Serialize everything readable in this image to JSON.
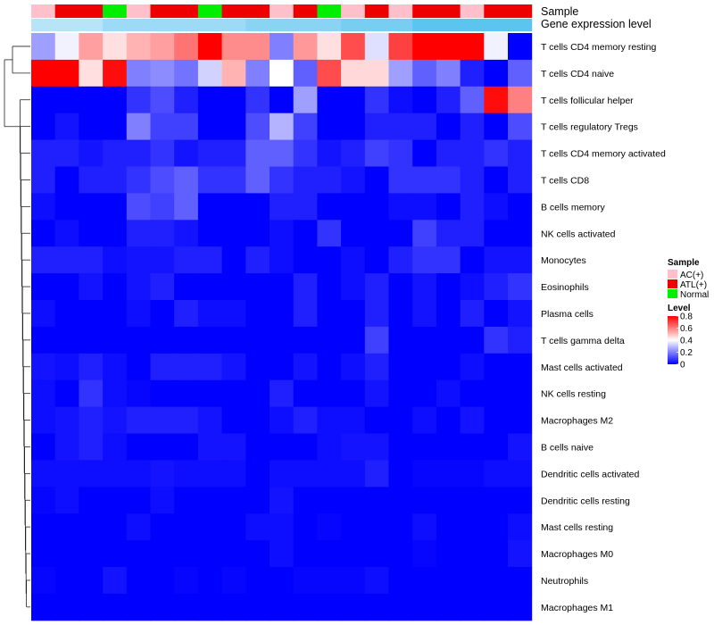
{
  "chart_data": {
    "type": "heatmap",
    "title": "",
    "annotations": {
      "sample_label": "Sample",
      "expression_label": "Gene expression level",
      "samples": [
        "AC(+)",
        "ATL(+)",
        "ATL(+)",
        "Normal",
        "AC(+)",
        "ATL(+)",
        "ATL(+)",
        "Normal",
        "ATL(+)",
        "ATL(+)",
        "AC(+)",
        "ATL(+)",
        "Normal",
        "AC(+)",
        "ATL(+)",
        "AC(+)",
        "ATL(+)",
        "ATL(+)",
        "AC(+)",
        "ATL(+)",
        "ATL(+)"
      ],
      "sample_colors": {
        "AC(+)": "#ffc0cb",
        "ATL(+)": "#ee0000",
        "Normal": "#00ee00"
      },
      "expression_bar": [
        0.05,
        0.05,
        0.05,
        0.08,
        0.08,
        0.08,
        0.08,
        0.08,
        0.08,
        0.1,
        0.1,
        0.1,
        0.1,
        0.12,
        0.12,
        0.12,
        0.15,
        0.15,
        0.15,
        0.15,
        0.15
      ],
      "expression_colors": [
        "#e6f3fb",
        "#5bc5ef"
      ]
    },
    "rows": [
      "T cells CD4 memory resting",
      "T cells CD4 naive",
      "T cells follicular helper",
      "T cells regulatory  Tregs",
      "T cells CD4 memory activated",
      "T cells CD8",
      "B cells memory",
      "NK cells activated",
      "Monocytes",
      "Eosinophils",
      "Plasma cells",
      "T cells gamma delta",
      "Mast cells activated",
      "NK cells resting",
      "Macrophages M2",
      "B cells naive",
      "Dendritic cells activated",
      "Dendritic cells resting",
      "Mast cells resting",
      "Macrophages M0",
      "Neutrophils",
      "Macrophages M1"
    ],
    "values": [
      [
        0.25,
        0.38,
        0.55,
        0.45,
        0.52,
        0.55,
        0.62,
        0.8,
        0.58,
        0.58,
        0.2,
        0.56,
        0.45,
        0.68,
        0.35,
        0.7,
        0.8,
        0.8,
        0.8,
        0.38,
        0.0
      ],
      [
        0.8,
        0.8,
        0.45,
        0.78,
        0.2,
        0.22,
        0.18,
        0.33,
        0.52,
        0.2,
        0.4,
        0.15,
        0.68,
        0.46,
        0.46,
        0.25,
        0.15,
        0.2,
        0.05,
        0.0,
        0.15
      ],
      [
        0.0,
        0.0,
        0.0,
        0.0,
        0.08,
        0.12,
        0.05,
        0.0,
        0.0,
        0.08,
        0.0,
        0.25,
        0.0,
        0.0,
        0.08,
        0.02,
        0.0,
        0.05,
        0.15,
        0.78,
        0.6
      ],
      [
        0.0,
        0.03,
        0.0,
        0.0,
        0.2,
        0.1,
        0.1,
        0.0,
        0.0,
        0.12,
        0.28,
        0.1,
        0.0,
        0.0,
        0.05,
        0.05,
        0.05,
        0.0,
        0.05,
        0.0,
        0.12
      ],
      [
        0.05,
        0.05,
        0.03,
        0.05,
        0.05,
        0.08,
        0.03,
        0.05,
        0.05,
        0.15,
        0.15,
        0.08,
        0.03,
        0.05,
        0.1,
        0.08,
        0.0,
        0.05,
        0.05,
        0.08,
        0.05
      ],
      [
        0.05,
        0.0,
        0.05,
        0.05,
        0.08,
        0.12,
        0.15,
        0.08,
        0.08,
        0.15,
        0.08,
        0.05,
        0.05,
        0.03,
        0.0,
        0.08,
        0.08,
        0.08,
        0.05,
        0.0,
        0.05
      ],
      [
        0.02,
        0.0,
        0.0,
        0.0,
        0.12,
        0.1,
        0.15,
        0.0,
        0.0,
        0.0,
        0.05,
        0.05,
        0.0,
        0.0,
        0.0,
        0.02,
        0.02,
        0.0,
        0.05,
        0.02,
        0.0
      ],
      [
        0.0,
        0.02,
        0.0,
        0.0,
        0.05,
        0.05,
        0.03,
        0.0,
        0.0,
        0.0,
        0.02,
        0.0,
        0.08,
        0.0,
        0.0,
        0.0,
        0.1,
        0.05,
        0.05,
        0.0,
        0.0
      ],
      [
        0.05,
        0.05,
        0.05,
        0.02,
        0.03,
        0.03,
        0.05,
        0.05,
        0.0,
        0.05,
        0.02,
        0.0,
        0.0,
        0.02,
        0.0,
        0.05,
        0.08,
        0.08,
        0.0,
        0.03,
        0.03
      ],
      [
        0.0,
        0.0,
        0.03,
        0.0,
        0.03,
        0.05,
        0.0,
        0.0,
        0.0,
        0.0,
        0.0,
        0.05,
        0.0,
        0.02,
        0.05,
        0.0,
        0.03,
        0.0,
        0.02,
        0.05,
        0.08
      ],
      [
        0.02,
        0.0,
        0.0,
        0.0,
        0.02,
        0.0,
        0.05,
        0.02,
        0.02,
        0.0,
        0.0,
        0.05,
        0.0,
        0.0,
        0.05,
        0.0,
        0.03,
        0.0,
        0.05,
        0.0,
        0.03
      ],
      [
        0.0,
        0.0,
        0.0,
        0.0,
        0.0,
        0.0,
        0.0,
        0.0,
        0.0,
        0.0,
        0.0,
        0.0,
        0.0,
        0.0,
        0.1,
        0.0,
        0.0,
        0.0,
        0.0,
        0.08,
        0.05
      ],
      [
        0.03,
        0.02,
        0.05,
        0.02,
        0.0,
        0.05,
        0.05,
        0.05,
        0.03,
        0.0,
        0.0,
        0.03,
        0.0,
        0.02,
        0.05,
        0.0,
        0.0,
        0.0,
        0.02,
        0.0,
        0.0
      ],
      [
        0.02,
        0.0,
        0.08,
        0.02,
        0.01,
        0.0,
        0.0,
        0.0,
        0.0,
        0.0,
        0.05,
        0.0,
        0.0,
        0.0,
        0.03,
        0.0,
        0.0,
        0.02,
        0.0,
        0.0,
        0.0
      ],
      [
        0.02,
        0.03,
        0.05,
        0.03,
        0.05,
        0.05,
        0.05,
        0.03,
        0.0,
        0.0,
        0.02,
        0.05,
        0.02,
        0.02,
        0.0,
        0.0,
        0.02,
        0.0,
        0.03,
        0.0,
        0.0
      ],
      [
        0.0,
        0.03,
        0.05,
        0.02,
        0.0,
        0.0,
        0.0,
        0.03,
        0.03,
        0.0,
        0.0,
        0.0,
        0.02,
        0.03,
        0.03,
        0.0,
        0.0,
        0.0,
        0.0,
        0.0,
        0.03
      ],
      [
        0.02,
        0.02,
        0.02,
        0.02,
        0.02,
        0.03,
        0.02,
        0.02,
        0.02,
        0.0,
        0.02,
        0.02,
        0.02,
        0.02,
        0.05,
        0.0,
        0.01,
        0.01,
        0.01,
        0.02,
        0.02
      ],
      [
        0.01,
        0.02,
        0.0,
        0.0,
        0.0,
        0.02,
        0.0,
        0.0,
        0.0,
        0.0,
        0.03,
        0.0,
        0.0,
        0.0,
        0.0,
        0.0,
        0.0,
        0.0,
        0.0,
        0.0,
        0.0
      ],
      [
        0.0,
        0.0,
        0.0,
        0.0,
        0.02,
        0.0,
        0.0,
        0.0,
        0.0,
        0.02,
        0.02,
        0.0,
        0.01,
        0.0,
        0.0,
        0.0,
        0.02,
        0.0,
        0.0,
        0.0,
        0.02
      ],
      [
        0.0,
        0.0,
        0.0,
        0.0,
        0.0,
        0.0,
        0.0,
        0.0,
        0.0,
        0.0,
        0.02,
        0.0,
        0.0,
        0.0,
        0.0,
        0.0,
        0.01,
        0.0,
        0.0,
        0.0,
        0.03
      ],
      [
        0.01,
        0.0,
        0.0,
        0.03,
        0.0,
        0.0,
        0.01,
        0.0,
        0.01,
        0.0,
        0.0,
        0.01,
        0.01,
        0.01,
        0.02,
        0.0,
        0.0,
        0.0,
        0.0,
        0.0,
        0.0
      ],
      [
        0.0,
        0.0,
        0.0,
        0.0,
        0.0,
        0.0,
        0.0,
        0.0,
        0.0,
        0.0,
        0.0,
        0.0,
        0.0,
        0.0,
        0.0,
        0.0,
        0.0,
        0.0,
        0.0,
        0.0,
        0.0
      ]
    ],
    "color_scale": {
      "min": 0,
      "max": 0.8,
      "low": "#0000ff",
      "mid": "#ffffff",
      "high": "#ff0000",
      "midpoint": 0.4
    },
    "legend": {
      "sample_title": "Sample",
      "sample_entries": [
        {
          "label": "AC(+)",
          "color": "#ffc0cb"
        },
        {
          "label": "ATL(+)",
          "color": "#ee0000"
        },
        {
          "label": "Normal",
          "color": "#00ee00"
        }
      ],
      "level_title": "Level",
      "level_ticks": [
        "0.8",
        "0.6",
        "0.4",
        "0.2",
        "0"
      ],
      "level_tick_values": [
        0.8,
        0.6,
        0.4,
        0.2,
        0
      ],
      "placement": "right"
    }
  }
}
